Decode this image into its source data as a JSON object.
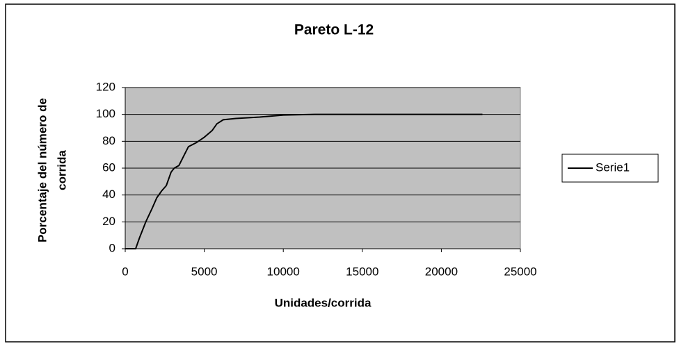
{
  "chart_data": {
    "type": "line",
    "title": "Pareto L-12",
    "x_label": "Unidades/corrida",
    "y_label": [
      "Porcentaje del número de",
      "corrida"
    ],
    "x": [
      0,
      660,
      900,
      1300,
      1700,
      2000,
      2300,
      2600,
      2900,
      3100,
      3400,
      3700,
      4000,
      4500,
      5000,
      5500,
      5800,
      6200,
      7000,
      8500,
      10000,
      12000,
      17000,
      22600
    ],
    "series": [
      {
        "name": "Serie1",
        "color": "#000000",
        "values": [
          0,
          0,
          8,
          20,
          30,
          38,
          43,
          47,
          57,
          60,
          62,
          69,
          76,
          79,
          83,
          88,
          93,
          96,
          97,
          98,
          99.5,
          100,
          100,
          100
        ]
      }
    ],
    "xlim": [
      0,
      25000
    ],
    "xticks": [
      0,
      5000,
      10000,
      15000,
      20000,
      25000
    ],
    "ylim": [
      0,
      120
    ],
    "yticks": [
      0,
      20,
      40,
      60,
      80,
      100,
      120
    ],
    "grid": true,
    "legend": "right"
  }
}
